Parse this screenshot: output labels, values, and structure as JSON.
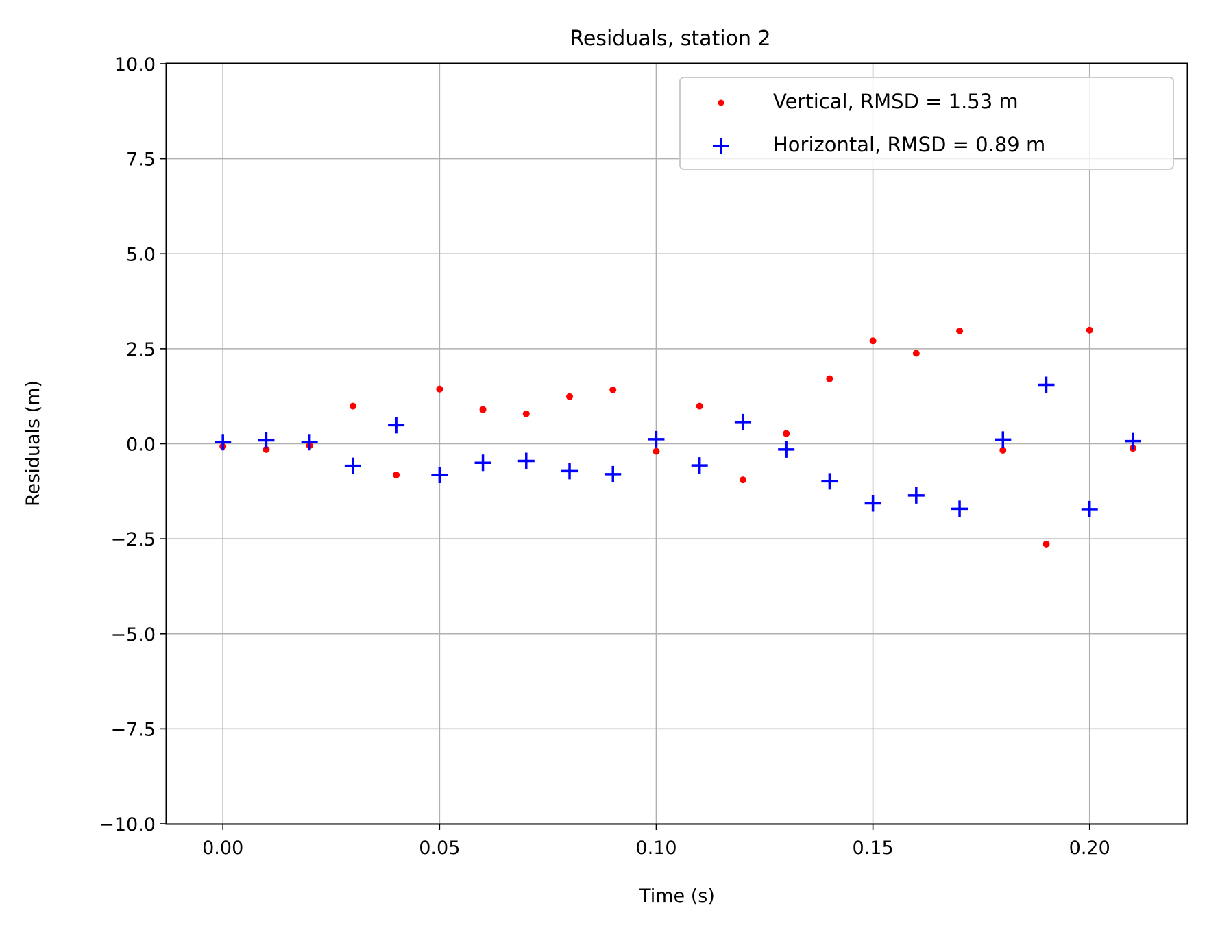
{
  "chart_data": {
    "type": "scatter",
    "title": "Residuals, station 2",
    "xlabel": "Time (s)",
    "ylabel": "Residuals (m)",
    "xlim": [
      -0.013,
      0.2225
    ],
    "ylim": [
      -10.0,
      10.0
    ],
    "x_ticks": [
      0.0,
      0.05,
      0.1,
      0.15,
      0.2
    ],
    "x_tick_labels": [
      "0.00",
      "0.05",
      "0.10",
      "0.15",
      "0.20"
    ],
    "y_ticks": [
      10.0,
      7.5,
      5.0,
      2.5,
      0.0,
      -2.5,
      -5.0,
      -7.5,
      -10.0
    ],
    "y_tick_labels": [
      "10.0",
      "7.5",
      "5.0",
      "2.5",
      "0.0",
      "−2.5",
      "−5.0",
      "−7.5",
      "−10.0"
    ],
    "grid": true,
    "legend_position": "top-right",
    "x": [
      0.0,
      0.01,
      0.02,
      0.03,
      0.04,
      0.05,
      0.06,
      0.07,
      0.08,
      0.09,
      0.1,
      0.11,
      0.12,
      0.13,
      0.14,
      0.15,
      0.16,
      0.17,
      0.18,
      0.19,
      0.2,
      0.21
    ],
    "series": [
      {
        "name": "Vertical, RMSD = 1.53 m",
        "marker": "dot",
        "color": "#ff0000",
        "values": [
          -0.07,
          -0.15,
          -0.05,
          0.99,
          -0.82,
          1.44,
          0.9,
          0.79,
          1.24,
          1.42,
          -0.2,
          0.99,
          -0.95,
          0.27,
          1.71,
          2.71,
          2.38,
          2.97,
          -0.17,
          -2.64,
          2.99,
          -0.12
        ]
      },
      {
        "name": "Horizontal, RMSD = 0.89 m",
        "marker": "plus",
        "color": "#0000ff",
        "values": [
          0.04,
          0.09,
          0.04,
          -0.58,
          0.49,
          -0.82,
          -0.5,
          -0.45,
          -0.72,
          -0.8,
          0.12,
          -0.57,
          0.57,
          -0.15,
          -0.99,
          -1.57,
          -1.36,
          -1.71,
          0.11,
          1.55,
          -1.72,
          0.07
        ]
      }
    ]
  }
}
